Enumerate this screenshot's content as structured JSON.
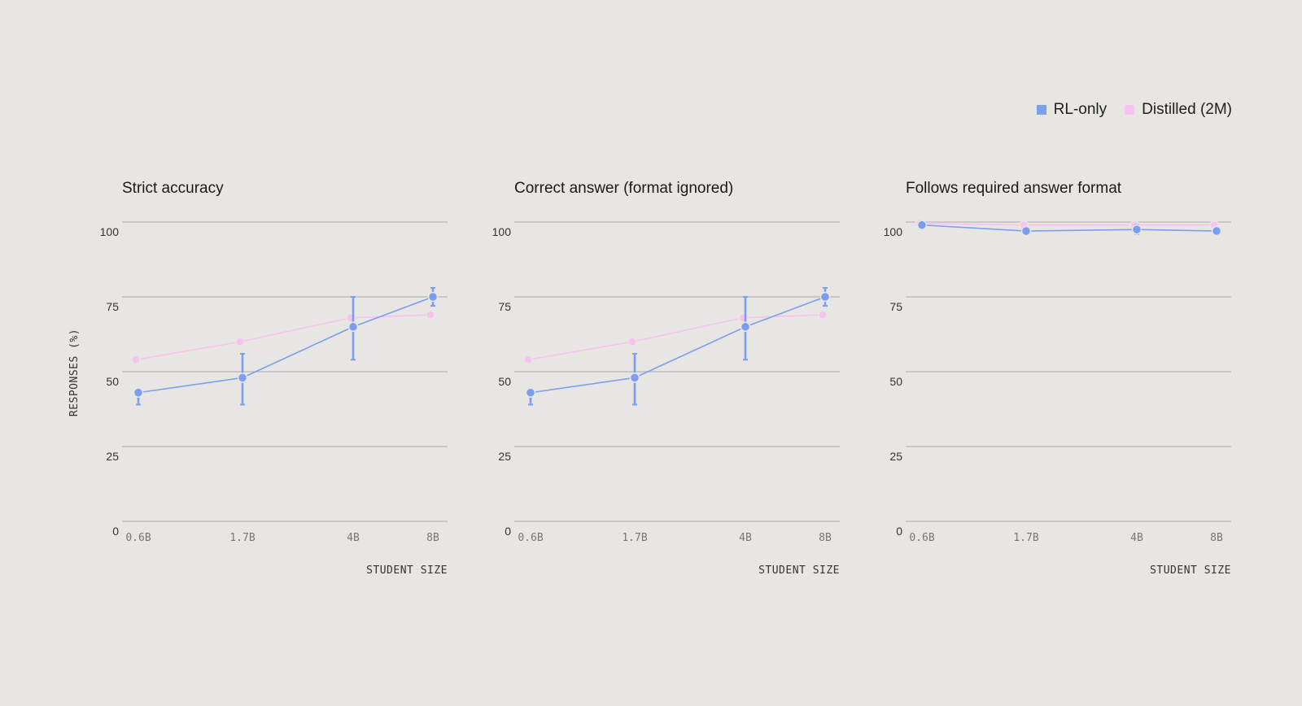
{
  "colors": {
    "background": "#e8e6e2",
    "rl_only": "#7b9ef0",
    "distilled": "#f7c2ef",
    "grid": "#b9b7b3"
  },
  "legend": [
    {
      "name": "RL-only",
      "color": "#7b9ef0"
    },
    {
      "name": "Distilled (2M)",
      "color": "#f7c2ef"
    }
  ],
  "ylabel": "RESPONSES (%)",
  "chart_data": [
    {
      "type": "line",
      "title": "Strict accuracy",
      "xlabel": "STUDENT SIZE",
      "ylabel": "RESPONSES (%)",
      "categories": [
        "0.6B",
        "1.7B",
        "4B",
        "8B"
      ],
      "yticks": [
        0,
        25,
        50,
        75,
        100
      ],
      "ylim": [
        0,
        100
      ],
      "grid": true,
      "series": [
        {
          "name": "RL-only",
          "values": [
            43,
            48,
            65,
            75
          ],
          "err_low": [
            39,
            39,
            54,
            72
          ],
          "err_high": [
            44,
            56,
            75,
            78
          ]
        },
        {
          "name": "Distilled (2M)",
          "values": [
            54,
            60,
            68,
            69
          ]
        }
      ]
    },
    {
      "type": "line",
      "title": "Correct answer (format ignored)",
      "xlabel": "STUDENT SIZE",
      "ylabel": "RESPONSES (%)",
      "categories": [
        "0.6B",
        "1.7B",
        "4B",
        "8B"
      ],
      "yticks": [
        0,
        25,
        50,
        75,
        100
      ],
      "ylim": [
        0,
        100
      ],
      "grid": true,
      "series": [
        {
          "name": "RL-only",
          "values": [
            43,
            48,
            65,
            75
          ],
          "err_low": [
            39,
            39,
            54,
            72
          ],
          "err_high": [
            44,
            56,
            75,
            78
          ]
        },
        {
          "name": "Distilled (2M)",
          "values": [
            54,
            60,
            68,
            69
          ]
        }
      ]
    },
    {
      "type": "line",
      "title": "Follows required answer format",
      "xlabel": "STUDENT SIZE",
      "ylabel": "",
      "categories": [
        "0.6B",
        "1.7B",
        "4B",
        "8B"
      ],
      "yticks": [
        0,
        25,
        50,
        75,
        100
      ],
      "ylim": [
        0,
        100
      ],
      "grid": true,
      "series": [
        {
          "name": "RL-only",
          "values": [
            99,
            97,
            97.5,
            97
          ],
          "err_low": [
            98,
            96,
            96,
            96
          ],
          "err_high": [
            100,
            98,
            99,
            98
          ]
        },
        {
          "name": "Distilled (2M)",
          "values": [
            99.5,
            99,
            99,
            99
          ]
        }
      ]
    }
  ]
}
